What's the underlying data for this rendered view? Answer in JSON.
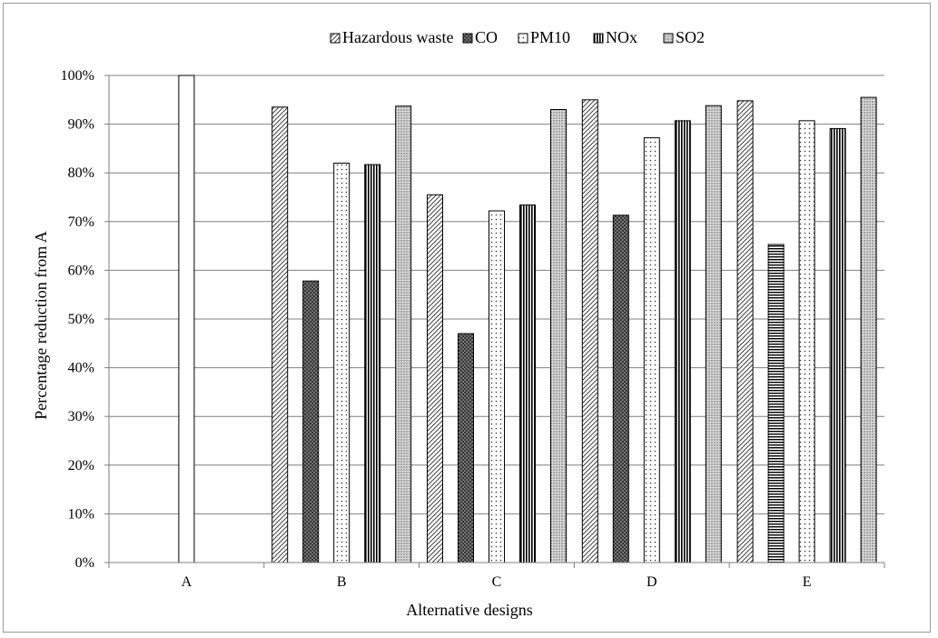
{
  "chart_data": {
    "type": "bar",
    "title": "",
    "xlabel": "Alternative designs",
    "ylabel": "Percentage reduction from A",
    "categories": [
      "A",
      "B",
      "C",
      "D",
      "E"
    ],
    "ylim": [
      0,
      100
    ],
    "y_ticks": [
      "0%",
      "10%",
      "20%",
      "30%",
      "40%",
      "50%",
      "60%",
      "70%",
      "80%",
      "90%",
      "100%"
    ],
    "grid": "horizontal",
    "legend_position": "top",
    "series": [
      {
        "name": "Hazardous waste",
        "pattern": "diagonal",
        "values": [
          null,
          93.5,
          75.5,
          95.0,
          94.8
        ]
      },
      {
        "name": "CO",
        "pattern": "crosshatch",
        "values": [
          null,
          57.8,
          47.0,
          71.3,
          65.3
        ]
      },
      {
        "name": "PM10",
        "pattern": "dots",
        "values": [
          null,
          82.0,
          72.2,
          87.2,
          90.7
        ]
      },
      {
        "name": "NOx",
        "pattern": "vertical",
        "values": [
          null,
          81.7,
          73.4,
          90.7,
          89.1
        ]
      },
      {
        "name": "SO2",
        "pattern": "fine-dots",
        "values": [
          null,
          93.7,
          93.0,
          93.8,
          95.5
        ]
      }
    ],
    "extra_bars": [
      {
        "category": "A",
        "value": 100,
        "pattern": "none"
      },
      {
        "category": "E",
        "slot": 1,
        "value": 65.3,
        "pattern": "horizontal"
      }
    ]
  }
}
